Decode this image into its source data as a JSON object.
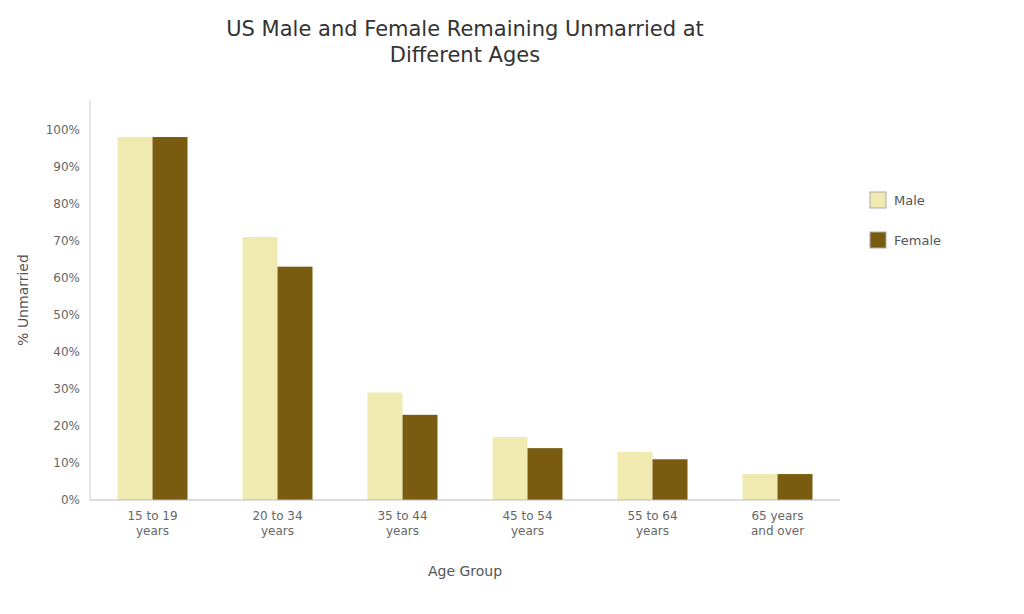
{
  "chart_data": {
    "type": "bar",
    "title": "US Male and Female Remaining Unmarried at\nDifferent Ages",
    "x_label": "Age Group",
    "y_label": "% Unmarried",
    "categories": [
      "15 to 19\nyears",
      "20 to 34\nyears",
      "35 to 44\nyears",
      "45 to 54\nyears",
      "55 to 64\nyears",
      "65 years\nand over"
    ],
    "series": [
      {
        "name": "Male",
        "color": "#F0EAB0",
        "values": [
          0.98,
          0.71,
          0.29,
          0.17,
          0.13,
          0.07
        ]
      },
      {
        "name": "Female",
        "color": "#7A5C10",
        "values": [
          0.98,
          0.63,
          0.23,
          0.14,
          0.11,
          0.07
        ]
      }
    ],
    "ylim": [
      0,
      1.08
    ],
    "yticks": [
      {
        "value": 0.0,
        "label": "0%"
      },
      {
        "value": 0.1,
        "label": "10%"
      },
      {
        "value": 0.2,
        "label": "20%"
      },
      {
        "value": 0.3,
        "label": "30%"
      },
      {
        "value": 0.4,
        "label": "40%"
      },
      {
        "value": 0.5,
        "label": "50%"
      },
      {
        "value": 0.6,
        "label": "60%"
      },
      {
        "value": 0.7,
        "label": "70%"
      },
      {
        "value": 0.8,
        "label": "80%"
      },
      {
        "value": 0.9,
        "label": "90%"
      },
      {
        "value": 1.0,
        "label": "100%"
      }
    ],
    "grid": false,
    "legend": "right"
  }
}
